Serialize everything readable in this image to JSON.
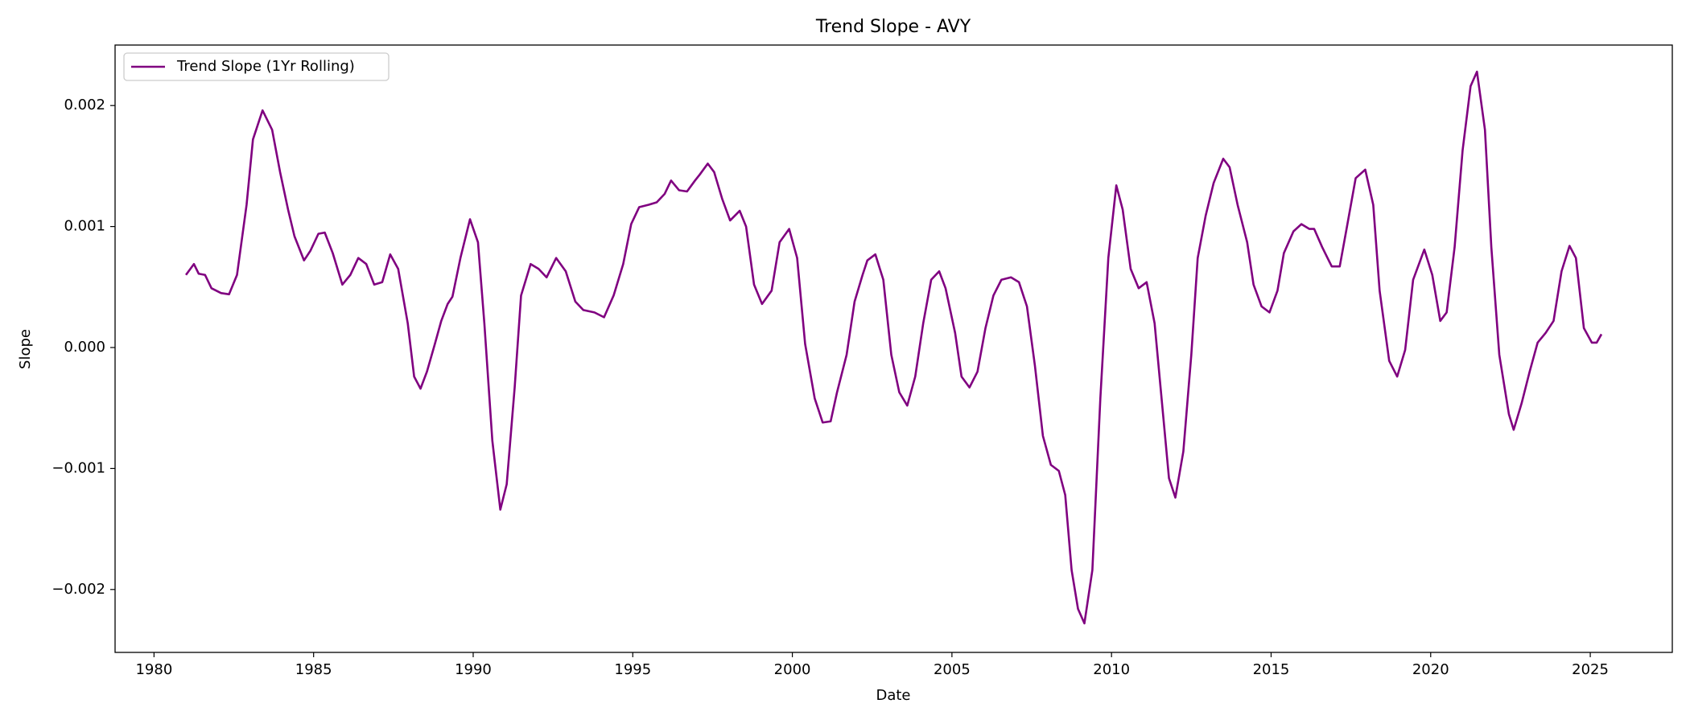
{
  "chart_data": {
    "type": "line",
    "title": "Trend Slope - AVY",
    "xlabel": "Date",
    "ylabel": "Slope",
    "legend": "upper left",
    "grid": false,
    "xlim": [
      1978.78,
      2027.57
    ],
    "xticks": [
      1980,
      1985,
      1990,
      1995,
      2000,
      2005,
      2010,
      2015,
      2020,
      2025
    ],
    "ylim": [
      -0.00252,
      0.0025
    ],
    "yticks": [
      {
        "value": -0.002,
        "label": "−0.002"
      },
      {
        "value": -0.001,
        "label": "−0.001"
      },
      {
        "value": 0,
        "label": "0.000"
      },
      0.001,
      0.002
    ],
    "x": [
      1981.0,
      1981.25,
      1981.4,
      1981.6,
      1981.8,
      1982.1,
      1982.35,
      1982.6,
      1982.9,
      1983.1,
      1983.4,
      1983.7,
      1983.95,
      1984.2,
      1984.4,
      1984.7,
      1984.9,
      1985.15,
      1985.35,
      1985.6,
      1985.9,
      1986.15,
      1986.4,
      1986.65,
      1986.9,
      1987.15,
      1987.4,
      1987.65,
      1987.95,
      1988.15,
      1988.35,
      1988.55,
      1988.8,
      1989.0,
      1989.2,
      1989.35,
      1989.6,
      1989.9,
      1990.15,
      1990.35,
      1990.6,
      1990.85,
      1991.05,
      1991.3,
      1991.5,
      1991.8,
      1992.05,
      1992.3,
      1992.6,
      1992.9,
      1993.2,
      1993.45,
      1993.8,
      1994.1,
      1994.4,
      1994.7,
      1994.95,
      1995.2,
      1995.5,
      1995.75,
      1996.0,
      1996.2,
      1996.45,
      1996.7,
      1996.95,
      1997.1,
      1997.35,
      1997.55,
      1997.8,
      1998.05,
      1998.35,
      1998.55,
      1998.8,
      1999.05,
      1999.35,
      1999.6,
      1999.9,
      2000.15,
      2000.4,
      2000.7,
      2000.95,
      2001.2,
      2001.4,
      2001.7,
      2001.95,
      2002.2,
      2002.35,
      2002.6,
      2002.85,
      2003.1,
      2003.35,
      2003.6,
      2003.85,
      2004.1,
      2004.35,
      2004.6,
      2004.8,
      2005.1,
      2005.3,
      2005.55,
      2005.8,
      2006.05,
      2006.3,
      2006.55,
      2006.85,
      2007.1,
      2007.35,
      2007.6,
      2007.85,
      2008.1,
      2008.35,
      2008.55,
      2008.75,
      2008.95,
      2009.15,
      2009.4,
      2009.65,
      2009.9,
      2010.15,
      2010.35,
      2010.6,
      2010.85,
      2011.1,
      2011.35,
      2011.6,
      2011.8,
      2012.0,
      2012.25,
      2012.5,
      2012.7,
      2012.95,
      2013.2,
      2013.5,
      2013.7,
      2013.95,
      2014.25,
      2014.45,
      2014.7,
      2014.95,
      2015.2,
      2015.4,
      2015.7,
      2015.95,
      2016.2,
      2016.35,
      2016.6,
      2016.9,
      2017.15,
      2017.35,
      2017.65,
      2017.95,
      2018.2,
      2018.4,
      2018.7,
      2018.95,
      2019.2,
      2019.45,
      2019.8,
      2020.05,
      2020.3,
      2020.5,
      2020.75,
      2021.0,
      2021.25,
      2021.45,
      2021.7,
      2021.9,
      2022.15,
      2022.45,
      2022.6,
      2022.85,
      2023.1,
      2023.35,
      2023.6,
      2023.85,
      2024.1,
      2024.35,
      2024.55,
      2024.8,
      2025.05,
      2025.2,
      2025.35
    ],
    "series": [
      {
        "name": "Trend Slope (1Yr Rolling)",
        "color": "#800080",
        "values": [
          0.0006,
          0.00069,
          0.00061,
          0.0006,
          0.00049,
          0.00045,
          0.00044,
          0.0006,
          0.00118,
          0.00172,
          0.00196,
          0.0018,
          0.00145,
          0.00114,
          0.00092,
          0.00072,
          0.0008,
          0.00094,
          0.00095,
          0.00078,
          0.00052,
          0.0006,
          0.00074,
          0.00069,
          0.00052,
          0.00054,
          0.00077,
          0.00065,
          0.0002,
          -0.00024,
          -0.00034,
          -0.0002,
          3e-05,
          0.00022,
          0.00036,
          0.00042,
          0.00074,
          0.00106,
          0.00087,
          0.0002,
          -0.00077,
          -0.00134,
          -0.00113,
          -0.00033,
          0.00043,
          0.00069,
          0.00065,
          0.00058,
          0.00074,
          0.00063,
          0.00038,
          0.00031,
          0.00029,
          0.00025,
          0.00043,
          0.00069,
          0.00102,
          0.00116,
          0.00118,
          0.0012,
          0.00127,
          0.00138,
          0.0013,
          0.00129,
          0.00138,
          0.00143,
          0.00152,
          0.00145,
          0.00123,
          0.00105,
          0.00113,
          0.001,
          0.00052,
          0.00036,
          0.00047,
          0.00087,
          0.00098,
          0.00074,
          3e-05,
          -0.00042,
          -0.00062,
          -0.00061,
          -0.00037,
          -6e-05,
          0.00038,
          0.0006,
          0.00072,
          0.00077,
          0.00056,
          -6e-05,
          -0.00037,
          -0.00048,
          -0.00024,
          0.0002,
          0.00056,
          0.00063,
          0.00049,
          0.00012,
          -0.00024,
          -0.00033,
          -0.0002,
          0.00016,
          0.00043,
          0.00056,
          0.00058,
          0.00054,
          0.00034,
          -0.00015,
          -0.00073,
          -0.00097,
          -0.00102,
          -0.00122,
          -0.00184,
          -0.00216,
          -0.00228,
          -0.00184,
          -0.00042,
          0.00074,
          0.00134,
          0.00114,
          0.00065,
          0.00049,
          0.00054,
          0.0002,
          -0.00051,
          -0.00108,
          -0.00124,
          -0.00086,
          -6e-05,
          0.00074,
          0.00109,
          0.00136,
          0.00156,
          0.00149,
          0.00118,
          0.00087,
          0.00052,
          0.00034,
          0.00029,
          0.00047,
          0.00078,
          0.00096,
          0.00102,
          0.00098,
          0.00098,
          0.00083,
          0.00067,
          0.00067,
          0.00096,
          0.0014,
          0.00147,
          0.00118,
          0.00047,
          -0.00011,
          -0.00024,
          -2e-05,
          0.00056,
          0.00081,
          0.0006,
          0.00022,
          0.00029,
          0.00083,
          0.00163,
          0.00216,
          0.00228,
          0.0018,
          0.00083,
          -6e-05,
          -0.00055,
          -0.00068,
          -0.00046,
          -0.0002,
          4e-05,
          0.00012,
          0.00022,
          0.00063,
          0.00084,
          0.00074,
          0.00016,
          4e-05,
          4e-05,
          0.00011
        ]
      }
    ]
  }
}
